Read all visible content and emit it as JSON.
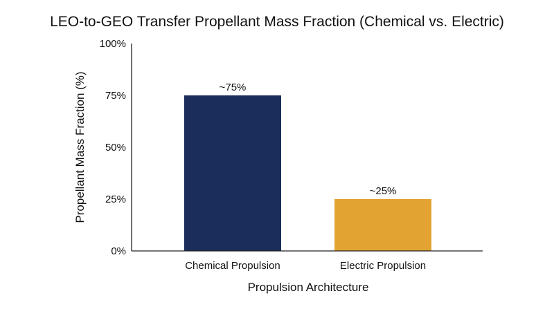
{
  "chart_data": {
    "type": "bar",
    "title": "LEO-to-GEO Transfer Propellant Mass Fraction (Chemical vs. Electric)",
    "xlabel": "Propulsion Architecture",
    "ylabel": "Propellant Mass Fraction (%)",
    "ylim": [
      0,
      100
    ],
    "yticks": [
      0,
      25,
      50,
      75,
      100
    ],
    "ytick_labels": [
      "0%",
      "25%",
      "50%",
      "75%",
      "100%"
    ],
    "categories": [
      "Chemical Propulsion",
      "Electric Propulsion"
    ],
    "values": [
      75,
      25
    ],
    "data_labels": [
      "~75%",
      "~25%"
    ],
    "colors": [
      "#1b2d5a",
      "#e3a332"
    ],
    "grid": false,
    "legend": "none"
  }
}
